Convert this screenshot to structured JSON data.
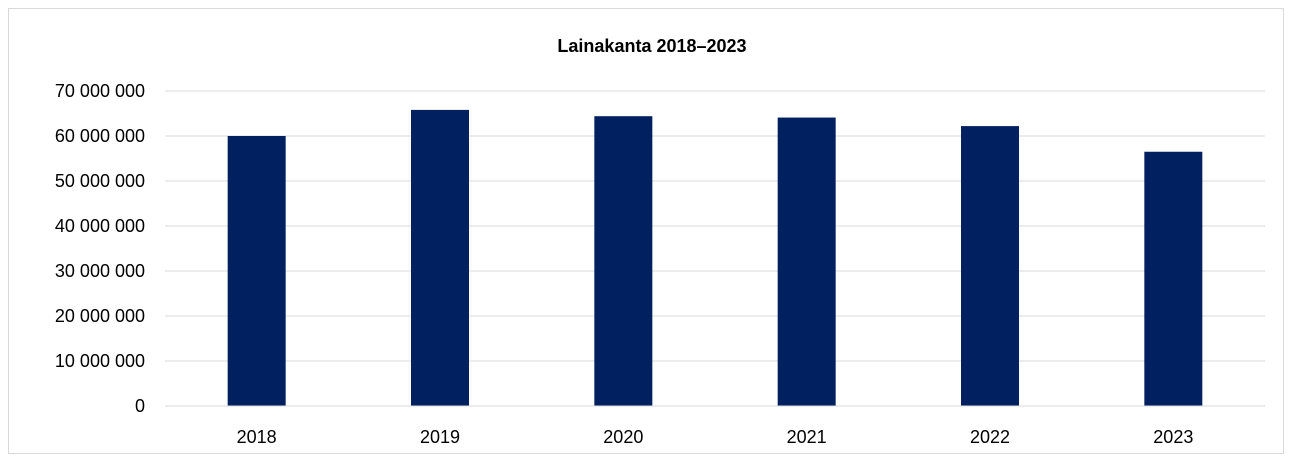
{
  "chart_data": {
    "type": "bar",
    "title": "Lainakanta 2018–2023",
    "xlabel": "",
    "ylabel": "",
    "categories": [
      "2018",
      "2019",
      "2020",
      "2021",
      "2022",
      "2023"
    ],
    "values": [
      60000000,
      65800000,
      64400000,
      64100000,
      62200000,
      56500000
    ],
    "ylim": [
      0,
      70000000
    ],
    "yticks": [
      0,
      10000000,
      20000000,
      30000000,
      40000000,
      50000000,
      60000000,
      70000000
    ],
    "ytick_labels": [
      "0",
      "10 000 000",
      "20 000 000",
      "30 000 000",
      "40 000 000",
      "50 000 000",
      "60 000 000",
      "70 000 000"
    ],
    "grid": true,
    "legend": "none",
    "bar_color": "#002060",
    "grid_color": "#d9d9d9"
  }
}
